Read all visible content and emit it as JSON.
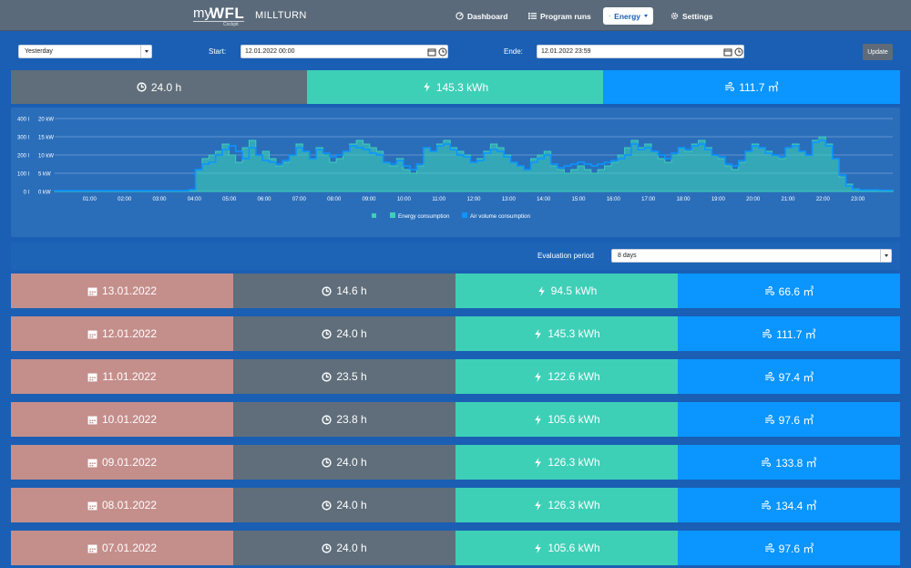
{
  "nav": {
    "brand_my": "my",
    "brand_wfl": "WFL",
    "brand_sub": "Cockpit",
    "machine": "MILLTURN",
    "items": [
      {
        "label": "Dashboard",
        "icon": "dashboard-icon"
      },
      {
        "label": "Program runs",
        "icon": "list-icon"
      },
      {
        "label": "Energy",
        "icon": "bolt-icon",
        "active": true
      },
      {
        "label": "Settings",
        "icon": "gear-icon"
      }
    ]
  },
  "toolbar": {
    "range_select": "Yesterday",
    "start_label": "Start:",
    "start_value": "12.01.2022 00:00",
    "end_label": "Ende:",
    "end_value": "12.01.2022 23:59",
    "update_label": "Update"
  },
  "summary": {
    "hours": "24.0 h",
    "energy": "145.3 kWh",
    "air": "111.7 ㎥"
  },
  "chart_data": {
    "type": "line",
    "x": [
      "01:00",
      "02:00",
      "03:00",
      "04:00",
      "05:00",
      "06:00",
      "07:00",
      "08:00",
      "09:00",
      "10:00",
      "11:00",
      "12:00",
      "13:00",
      "14:00",
      "15:00",
      "16:00",
      "17:00",
      "18:00",
      "19:00",
      "20:00",
      "21:00",
      "22:00",
      "23:00"
    ],
    "y_left_ticks": [
      "400 l",
      "300 l",
      "200 l",
      "100 l",
      "0 l"
    ],
    "y_right_ticks": [
      "20 kW",
      "15 kW",
      "10 kW",
      "5 kW",
      "0 kW"
    ],
    "ylim_kw": [
      0,
      20
    ],
    "ylim_l": [
      0,
      400
    ],
    "legend": [
      "Energy consumption",
      "Air volume consumption"
    ],
    "legend_position": "bottom",
    "grid": true,
    "energy_kw": [
      0.2,
      0.2,
      0.2,
      0.2,
      0.2,
      0.2,
      0.2,
      0.2,
      0.2,
      0.2,
      0.2,
      0.2,
      0.2,
      0.2,
      0.2,
      0.2,
      0.2,
      0.2,
      0.2,
      0.2,
      0.5,
      6,
      9,
      10,
      11,
      13,
      10,
      8,
      12,
      14,
      10,
      11,
      9,
      7,
      8,
      10,
      13,
      11,
      9,
      12,
      10,
      8,
      9,
      11,
      13,
      14,
      13,
      12,
      11,
      8,
      7,
      9,
      6,
      5,
      7,
      12,
      11,
      13,
      14,
      12,
      11,
      10,
      8,
      9,
      11,
      13,
      12,
      10,
      8,
      7,
      6,
      9,
      10,
      11,
      7,
      6,
      5,
      6,
      7,
      6,
      5,
      6,
      7,
      8,
      10,
      12,
      14,
      12,
      13,
      11,
      9,
      8,
      10,
      12,
      11,
      13,
      14,
      12,
      10,
      9,
      7,
      6,
      8,
      11,
      13,
      12,
      11,
      10,
      9,
      12,
      13,
      11,
      10,
      14,
      15,
      13,
      9,
      4,
      2,
      0.7,
      0.4,
      0.4,
      0.4,
      0.3,
      0.3
    ],
    "air_l": [
      4,
      4,
      4,
      4,
      4,
      4,
      4,
      4,
      4,
      4,
      4,
      4,
      4,
      4,
      4,
      4,
      4,
      4,
      4,
      4,
      10,
      120,
      150,
      160,
      200,
      230,
      250,
      220,
      180,
      240,
      200,
      170,
      160,
      150,
      170,
      200,
      240,
      220,
      180,
      230,
      210,
      190,
      200,
      220,
      250,
      240,
      230,
      210,
      200,
      160,
      150,
      170,
      140,
      120,
      150,
      240,
      220,
      250,
      260,
      230,
      200,
      190,
      160,
      170,
      210,
      230,
      220,
      190,
      160,
      140,
      120,
      160,
      180,
      200,
      150,
      130,
      140,
      150,
      160,
      150,
      140,
      150,
      160,
      170,
      180,
      200,
      260,
      230,
      240,
      220,
      200,
      180,
      210,
      240,
      230,
      250,
      260,
      230,
      200,
      190,
      150,
      140,
      170,
      220,
      250,
      240,
      210,
      200,
      190,
      240,
      250,
      220,
      200,
      270,
      280,
      250,
      180,
      90,
      30,
      10,
      8,
      8,
      8,
      6,
      6
    ]
  },
  "evaluation": {
    "label": "Evaluation period",
    "value": "8 days"
  },
  "days": [
    {
      "date": "13.01.2022",
      "hours": "14.6 h",
      "energy": "94.5 kWh",
      "air": "66.6 ㎥"
    },
    {
      "date": "12.01.2022",
      "hours": "24.0 h",
      "energy": "145.3 kWh",
      "air": "111.7 ㎥"
    },
    {
      "date": "11.01.2022",
      "hours": "23.5 h",
      "energy": "122.6 kWh",
      "air": "97.4 ㎥"
    },
    {
      "date": "10.01.2022",
      "hours": "23.8 h",
      "energy": "105.6 kWh",
      "air": "97.6 ㎥"
    },
    {
      "date": "09.01.2022",
      "hours": "24.0 h",
      "energy": "126.3 kWh",
      "air": "133.8 ㎥"
    },
    {
      "date": "08.01.2022",
      "hours": "24.0 h",
      "energy": "126.3 kWh",
      "air": "134.4 ㎥"
    },
    {
      "date": "07.01.2022",
      "hours": "24.0 h",
      "energy": "105.6 kWh",
      "air": "97.6 ㎥"
    }
  ],
  "colors": {
    "bg": "#1a5fb4",
    "navbar": "#5a6a7a",
    "time": "#5f6e7a",
    "energy": "#3ecfb7",
    "air": "#0a95ff",
    "date": "#c48e8b",
    "chart_bg": "#2a6eba"
  }
}
